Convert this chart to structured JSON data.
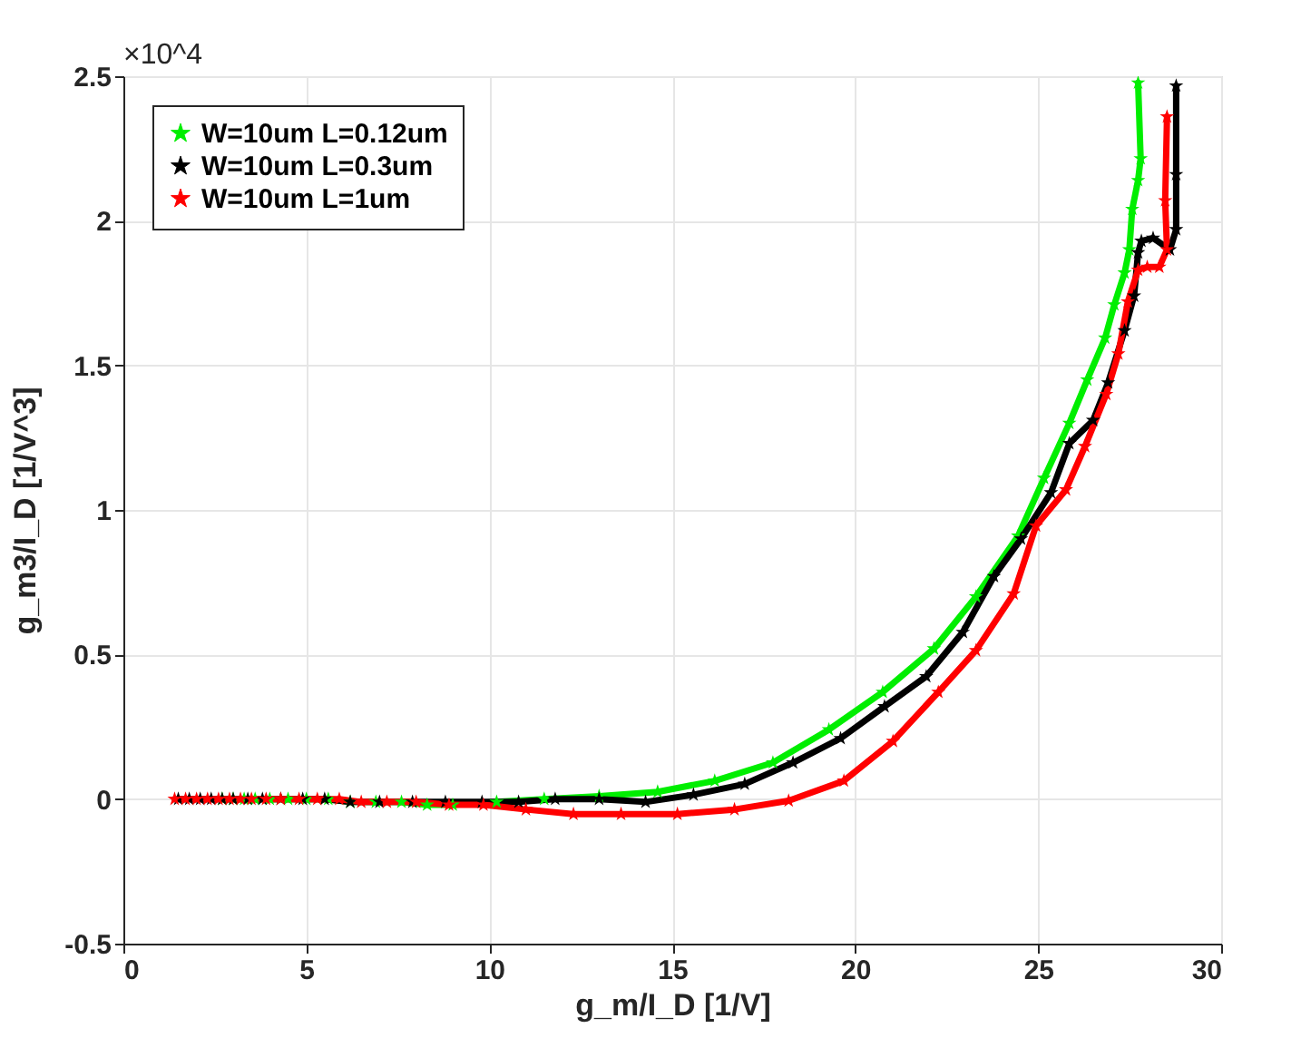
{
  "chart_data": {
    "type": "line",
    "xlabel": "g_m/I_D [1/V]",
    "ylabel": "g_m3/I_D [1/V^3]",
    "annotations": [
      "×10^4"
    ],
    "xlim": [
      0,
      30
    ],
    "xticks": [
      0,
      5,
      10,
      15,
      20,
      25,
      30
    ],
    "ylim": [
      -0.5,
      2.5
    ],
    "yticks": [
      {
        "value": -0.5,
        "label": "-0.5"
      },
      0,
      {
        "value": 0.5,
        "label": "0.5"
      },
      1,
      {
        "value": 1.5,
        "label": "1.5"
      },
      2,
      {
        "value": 2.5,
        "label": "2.5"
      }
    ],
    "grid": true,
    "legend": "top left",
    "marker": "star",
    "line_style": "solid",
    "series": [
      {
        "name": "W=10um L=0.12um",
        "color": "#00ee00",
        "x": [
          2.7,
          3.0,
          3.3,
          3.6,
          4.0,
          4.5,
          5.0,
          5.6,
          6.2,
          6.9,
          7.6,
          8.3,
          9.0,
          10.2,
          11.5,
          13.0,
          14.6,
          16.16,
          17.75,
          19.28,
          20.75,
          22.15,
          23.3,
          24.45,
          25.16,
          25.85,
          26.34,
          26.83,
          27.08,
          27.36,
          27.49,
          27.57,
          27.73,
          27.8,
          27.73
        ],
        "values": [
          0,
          0,
          0,
          0,
          0,
          0,
          0,
          0,
          -0.01,
          -0.01,
          -0.01,
          -0.02,
          -0.02,
          -0.01,
          0,
          0.01,
          0.025,
          0.063,
          0.126,
          0.24,
          0.37,
          0.52,
          0.7,
          0.91,
          1.11,
          1.3,
          1.45,
          1.595,
          1.71,
          1.82,
          1.9,
          2.04,
          2.14,
          2.215,
          2.477
        ]
      },
      {
        "name": "W=10um L=0.3um",
        "color": "#000000",
        "x": [
          1.5,
          1.8,
          2.1,
          2.4,
          2.7,
          3.0,
          3.4,
          3.8,
          4.3,
          4.9,
          5.5,
          6.2,
          7.0,
          7.9,
          8.8,
          9.8,
          10.8,
          11.8,
          13.0,
          14.27,
          15.58,
          16.98,
          18.3,
          19.6,
          20.8,
          21.94,
          22.94,
          23.79,
          24.53,
          25.35,
          25.85,
          26.5,
          26.91,
          27.36,
          27.62,
          27.73,
          27.82,
          28.14,
          28.6,
          28.77,
          28.77,
          28.77
        ],
        "values": [
          0,
          0,
          0,
          0,
          0,
          0,
          0,
          0,
          0,
          0,
          0,
          -0.01,
          -0.01,
          -0.01,
          -0.01,
          -0.01,
          -0.01,
          0,
          0,
          -0.01,
          0.015,
          0.052,
          0.126,
          0.21,
          0.32,
          0.424,
          0.577,
          0.77,
          0.9,
          1.06,
          1.23,
          1.31,
          1.44,
          1.62,
          1.74,
          1.89,
          1.93,
          1.94,
          1.9,
          1.97,
          2.16,
          2.467
        ]
      },
      {
        "name": "W=10um L=1um",
        "color": "#ff0000",
        "x": [
          1.4,
          1.7,
          2.0,
          2.3,
          2.6,
          2.9,
          3.2,
          3.5,
          3.9,
          4.3,
          4.8,
          5.3,
          5.9,
          6.5,
          7.2,
          8.0,
          8.9,
          9.84,
          11.0,
          12.3,
          13.6,
          15.14,
          16.7,
          18.18,
          19.69,
          21.03,
          22.27,
          23.3,
          24.33,
          24.94,
          25.76,
          26.28,
          26.86,
          27.19,
          27.45,
          27.73,
          27.98,
          28.31,
          28.52,
          28.47,
          28.52
        ],
        "values": [
          0,
          0,
          0,
          0,
          0,
          0,
          0,
          0,
          0,
          0,
          0,
          0,
          0,
          -0.01,
          -0.01,
          -0.01,
          -0.02,
          -0.02,
          -0.036,
          -0.052,
          -0.052,
          -0.052,
          -0.036,
          -0.006,
          0.063,
          0.2,
          0.37,
          0.514,
          0.71,
          0.945,
          1.07,
          1.22,
          1.4,
          1.54,
          1.72,
          1.83,
          1.84,
          1.84,
          1.9,
          2.07,
          2.36
        ]
      }
    ]
  }
}
